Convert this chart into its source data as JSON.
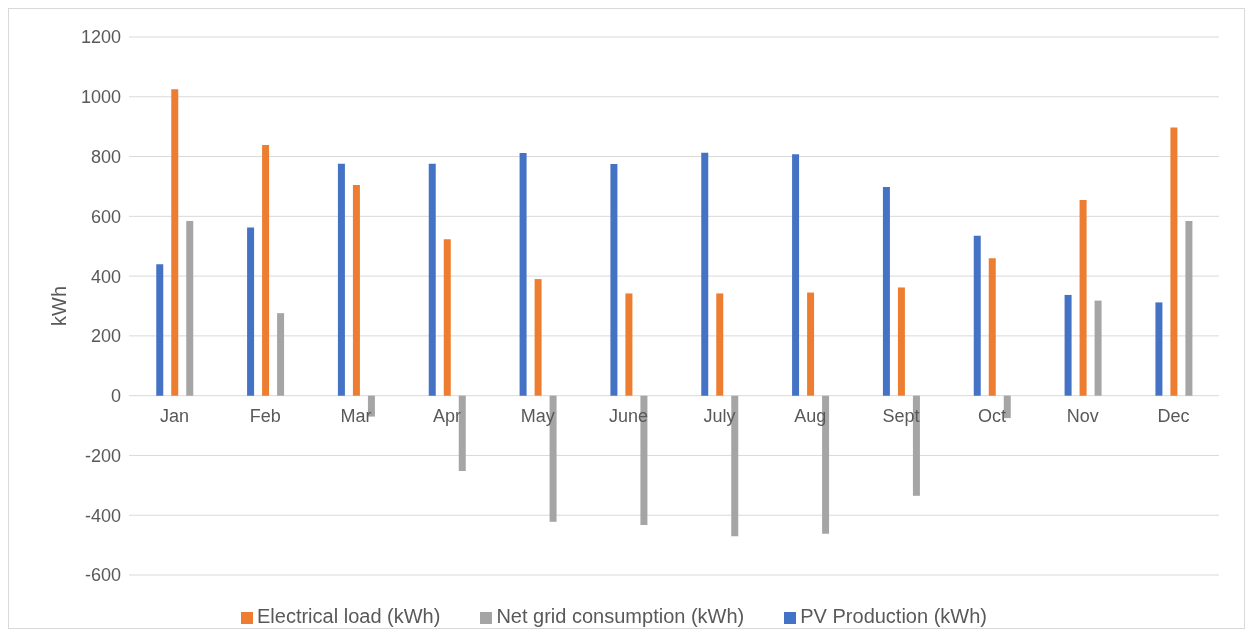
{
  "chart_data": {
    "type": "bar",
    "ylabel": "kWh",
    "categories": [
      "Jan",
      "Feb",
      "Mar",
      "Apr",
      "May",
      "June",
      "July",
      "Aug",
      "Sept",
      "Oct",
      "Nov",
      "Dec"
    ],
    "series": [
      {
        "name": "PV Production (kWh)",
        "color": "#4472c4",
        "values": [
          440,
          563,
          776,
          776,
          812,
          775,
          813,
          808,
          698,
          535,
          337,
          312
        ]
      },
      {
        "name": "Electrical load (kWh)",
        "color": "#ed7d31",
        "values": [
          1025,
          839,
          705,
          523,
          390,
          342,
          342,
          345,
          362,
          460,
          655,
          897
        ]
      },
      {
        "name": "Net grid consumption (kWh)",
        "color": "#a5a5a5",
        "values": [
          584,
          276,
          -70,
          -252,
          -422,
          -433,
          -470,
          -462,
          -335,
          -75,
          318,
          584
        ]
      }
    ],
    "ylim": [
      -600,
      1200
    ],
    "yticks": [
      -600,
      -400,
      -200,
      0,
      200,
      400,
      600,
      800,
      1000,
      1200
    ],
    "grid": "y",
    "legend": "bottom"
  }
}
